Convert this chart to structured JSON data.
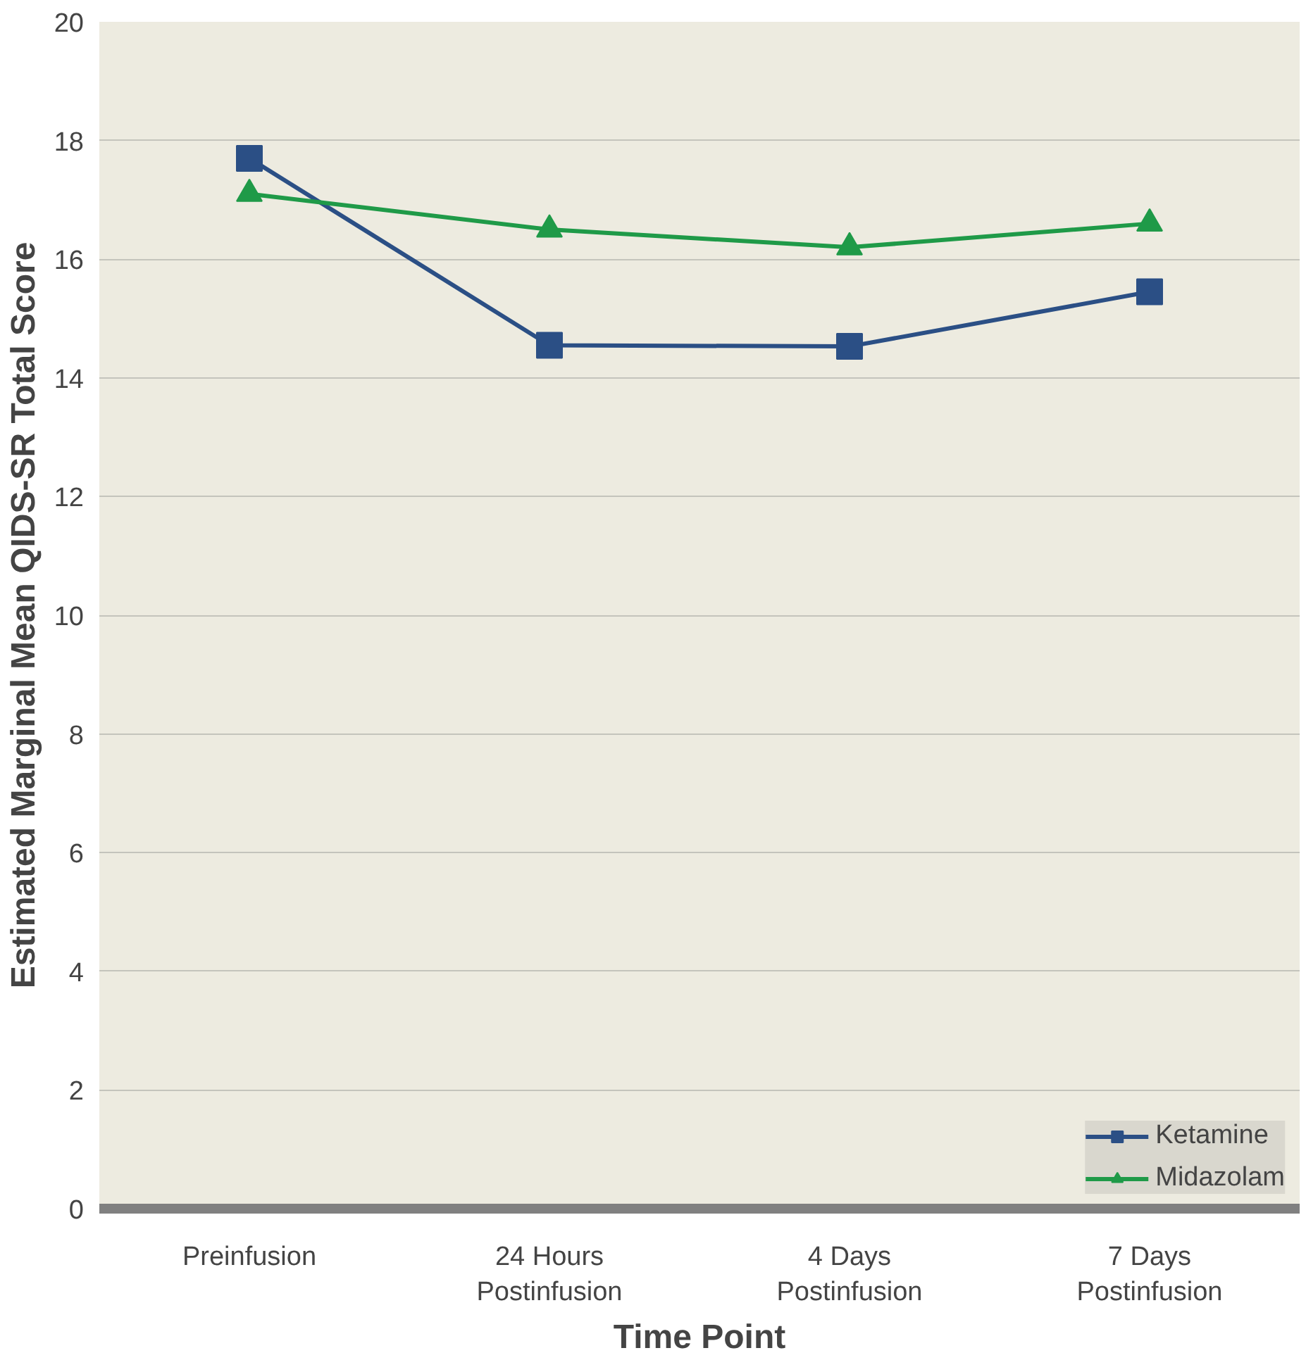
{
  "chart_data": {
    "type": "line",
    "xlabel": "Time Point",
    "ylabel": "Estimated Marginal Mean QIDS-SR Total Score",
    "categories": [
      "Preinfusion",
      "24 Hours\nPostinfusion",
      "4 Days\nPostinfusion",
      "7 Days\nPostinfusion"
    ],
    "series": [
      {
        "name": "Ketamine",
        "color": "#2b4f85",
        "marker": "square",
        "values": [
          17.7,
          14.55,
          14.53,
          15.45
        ]
      },
      {
        "name": "Midazolam",
        "color": "#1f9a48",
        "marker": "triangle",
        "values": [
          17.1,
          16.5,
          16.2,
          16.6
        ]
      }
    ],
    "ylim": [
      0,
      20
    ],
    "yticks": [
      0,
      2,
      4,
      6,
      8,
      10,
      12,
      14,
      16,
      18,
      20
    ],
    "grid": "y",
    "legend": "bottom right",
    "line_style": "solid"
  }
}
